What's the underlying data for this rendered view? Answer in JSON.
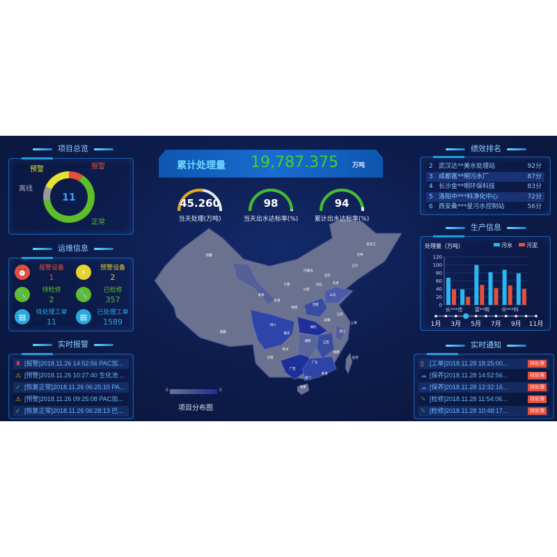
{
  "overview": {
    "title": "项目总览",
    "total": "11",
    "segments": [
      {
        "label": "报警",
        "value": 1,
        "color": "#e4503c"
      },
      {
        "label": "正常",
        "value": 7,
        "color": "#5cbf2a"
      },
      {
        "label": "离线",
        "value": 1,
        "color": "#9a9a9a"
      },
      {
        "label": "预警",
        "value": 2,
        "color": "#e6e22e"
      }
    ]
  },
  "ops": {
    "title": "运维信息",
    "items": [
      {
        "label": "报警设备",
        "value": "1",
        "color": "#e4503c",
        "icon": "alarm-light-icon"
      },
      {
        "label": "预警设备",
        "value": "2",
        "color": "#e6d22e",
        "icon": "lightning-icon"
      },
      {
        "label": "待检修",
        "value": "2",
        "color": "#5cbf2a",
        "icon": "wrench-icon"
      },
      {
        "label": "已检修",
        "value": "357",
        "color": "#5cbf2a",
        "icon": "wrench-icon"
      },
      {
        "label": "待处理工单",
        "value": "11",
        "color": "#2aa8e0",
        "icon": "document-icon"
      },
      {
        "label": "已处理工单",
        "value": "1589",
        "color": "#2aa8e0",
        "icon": "document-icon"
      }
    ]
  },
  "alarms": {
    "title": "实时报警",
    "items": [
      {
        "text": "[报警]2018.11.26 14:52:56 PAC加...",
        "icon": "alarm-icon",
        "color": "#e4503c"
      },
      {
        "text": "[预警]2018.11.26 10:27:40 生化池 ...",
        "icon": "warning-icon",
        "color": "#e6c22e"
      },
      {
        "text": "[恢复正常]2018.11.26 06:25:10 PA...",
        "icon": "check-icon",
        "color": "#5cbf2a"
      },
      {
        "text": "[预警]2018.11.26 09:25:08 PAC加...",
        "icon": "warning-icon",
        "color": "#e6c22e"
      },
      {
        "text": "[恢复正常]2018.11.26 06:28:13 巴...",
        "icon": "check-icon",
        "color": "#5cbf2a"
      }
    ]
  },
  "summary": {
    "label": "累计处理量",
    "value": "19,787.375",
    "unit": "万吨"
  },
  "gauges": [
    {
      "value": "45.260",
      "label": "当天处理(万吨)",
      "fraction": 0.55,
      "color": "#e0a81e"
    },
    {
      "value": "98",
      "label": "当天出水达标率(%)",
      "fraction": 0.98,
      "color": "#3fbf2a"
    },
    {
      "value": "94",
      "label": "累计出水达标率(%)",
      "fraction": 0.94,
      "color": "#3fbf2a"
    }
  ],
  "map": {
    "title": "项目分布图",
    "legend_min": "0",
    "legend_max": "5",
    "low_color": "#6b7290",
    "high_color": "#1e2f9a",
    "labels": [
      "新疆",
      "西藏",
      "青海",
      "甘肃",
      "宁夏",
      "内蒙古",
      "黑龙江",
      "吉林",
      "辽宁",
      "北京",
      "天津",
      "河北",
      "山西",
      "山东",
      "陕西",
      "河南",
      "四川",
      "重庆",
      "湖北",
      "安徽",
      "江苏",
      "上海",
      "浙江",
      "湖南",
      "江西",
      "贵州",
      "云南",
      "广西",
      "广东",
      "福建",
      "台湾",
      "澳门",
      "香港",
      "海南"
    ]
  },
  "ranking": {
    "title": "绩效排名",
    "items": [
      {
        "rank": "2",
        "name": "武汉达**美水处理站",
        "score": "92分"
      },
      {
        "rank": "3",
        "name": "成都富**明污水厂",
        "score": "87分"
      },
      {
        "rank": "4",
        "name": "长沙金**明环保科技",
        "score": "83分"
      },
      {
        "rank": "5",
        "name": "洛阳中***科净化中心",
        "score": "72分"
      },
      {
        "rank": "6",
        "name": "西安桑***星污水控制站",
        "score": "56分"
      }
    ]
  },
  "production": {
    "title": "生产信息",
    "timeline": [
      "1月",
      "3月",
      "5月",
      "7月",
      "9月",
      "11月"
    ],
    "timeline_active": 4
  },
  "chart_data": {
    "type": "bar",
    "ylabel": "处理量（万吨）",
    "ylim": [
      0,
      120
    ],
    "yticks": [
      0,
      20,
      40,
      60,
      80,
      100,
      120
    ],
    "categories": [
      "长***信",
      "",
      "富**明",
      "",
      "中***科",
      ""
    ],
    "series": [
      {
        "name": "污水",
        "color": "#2ab6f0",
        "values": [
          68,
          39,
          100,
          82,
          88,
          79
        ]
      },
      {
        "name": "污泥",
        "color": "#e4503c",
        "values": [
          39,
          20,
          50,
          42,
          49,
          40
        ]
      }
    ],
    "legend": "top-right",
    "grid": true
  },
  "notices": {
    "title": "实时通知",
    "badge": "待处理",
    "items": [
      {
        "text": "[工单]2018.11.28 18:25:00...",
        "icon": "clipboard-icon",
        "color": "#d8a52e"
      },
      {
        "text": "[保养]2018.11.28 14:52:56...",
        "icon": "maintenance-icon",
        "color": "#3a6fd0"
      },
      {
        "text": "[保养]2018.11.28 12:32:16...",
        "icon": "maintenance-icon",
        "color": "#3a6fd0"
      },
      {
        "text": "[检修]2018.11.28 11:54:06...",
        "icon": "repair-icon",
        "color": "#2f9a5a"
      },
      {
        "text": "[检修]2018.11.28 10:48:17...",
        "icon": "repair-icon",
        "color": "#2f9a5a"
      }
    ]
  }
}
